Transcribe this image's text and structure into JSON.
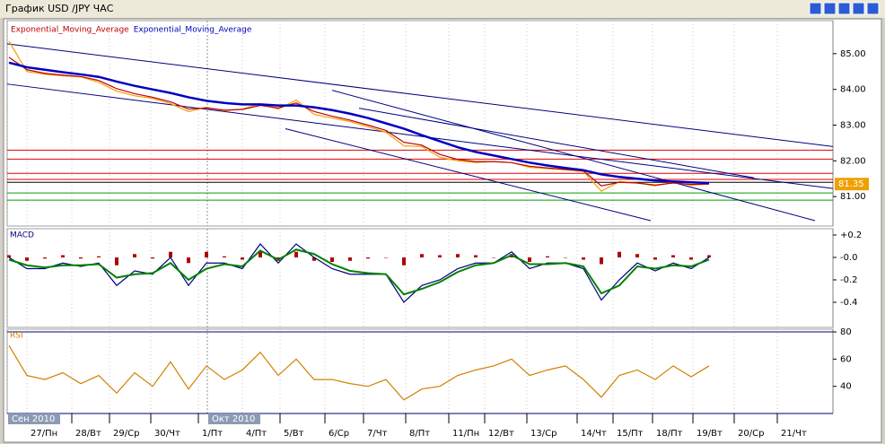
{
  "window": {
    "title": "График USD /JPY  ЧАС"
  },
  "chart_data": [
    {
      "type": "line",
      "legend": "top-left",
      "grid": true,
      "xlim": [
        -0.1,
        45.9
      ],
      "ylim": [
        80.175,
        85.925
      ],
      "yticks": [
        {
          "value": 81,
          "label": "81.00"
        },
        {
          "value": 82,
          "label": "82.00"
        },
        {
          "value": 83,
          "label": "83.00"
        },
        {
          "value": 84,
          "label": "84.00"
        },
        {
          "value": 85,
          "label": "85.00"
        }
      ],
      "last_price": 81.35,
      "last_price_color": "#f0a000",
      "series": [
        {
          "color": "#f0a000",
          "values": [
            85.35,
            84.5,
            84.42,
            84.38,
            84.35,
            84.2,
            83.95,
            83.82,
            83.75,
            83.6,
            83.38,
            83.5,
            83.4,
            83.45,
            83.6,
            83.45,
            83.7,
            83.3,
            83.2,
            83.1,
            82.95,
            82.8,
            82.42,
            82.4,
            82.1,
            82.0,
            81.95,
            81.98,
            81.95,
            81.82,
            81.78,
            81.75,
            81.7,
            81.15,
            81.42,
            81.38,
            81.3,
            81.4,
            81.32,
            81.35
          ]
        },
        {
          "name": "Exponential_Moving_Average",
          "color": "#c00000",
          "values": [
            84.9,
            84.55,
            84.45,
            84.4,
            84.36,
            84.25,
            84.02,
            83.88,
            83.78,
            83.65,
            83.45,
            83.48,
            83.42,
            83.44,
            83.55,
            83.48,
            83.62,
            83.38,
            83.25,
            83.14,
            83.0,
            82.85,
            82.52,
            82.44,
            82.18,
            82.04,
            81.98,
            81.98,
            81.95,
            81.85,
            81.8,
            81.76,
            81.72,
            81.3,
            81.4,
            81.38,
            81.32,
            81.38,
            81.34,
            81.35
          ]
        },
        {
          "name": "Exponential_Moving_Average",
          "color": "#0000c0",
          "values": [
            84.75,
            84.62,
            84.55,
            84.48,
            84.42,
            84.35,
            84.22,
            84.1,
            84.0,
            83.9,
            83.78,
            83.68,
            83.62,
            83.58,
            83.58,
            83.55,
            83.55,
            83.5,
            83.42,
            83.32,
            83.2,
            83.05,
            82.9,
            82.72,
            82.55,
            82.38,
            82.25,
            82.15,
            82.05,
            81.95,
            81.87,
            81.8,
            81.74,
            81.62,
            81.55,
            81.5,
            81.45,
            81.42,
            81.4,
            81.38
          ]
        }
      ],
      "hlines": [
        {
          "value": 82.3,
          "color": "#e00000"
        },
        {
          "value": 82.05,
          "color": "#e00000"
        },
        {
          "value": 81.65,
          "color": "#e00000"
        },
        {
          "value": 81.48,
          "color": "#e00000"
        },
        {
          "value": 81.4,
          "color": "#000000"
        },
        {
          "value": 81.1,
          "color": "#00a000"
        },
        {
          "value": 80.9,
          "color": "#00a000"
        }
      ],
      "trendlines": [
        {
          "x": [
            -0.1,
            45.9
          ],
          "y": [
            85.275,
            82.4
          ],
          "color": "#000080"
        },
        {
          "x": [
            -0.1,
            45.9
          ],
          "y": [
            84.15,
            81.225
          ],
          "color": "#000080"
        },
        {
          "x": [
            18,
            44.9
          ],
          "y": [
            83.975,
            80.325
          ],
          "color": "#000080"
        },
        {
          "x": [
            15.4,
            35.75
          ],
          "y": [
            82.9,
            80.325
          ],
          "color": "#000080"
        },
        {
          "x": [
            19.5,
            41.5
          ],
          "y": [
            83.475,
            81.525
          ],
          "color": "#000080"
        }
      ]
    },
    {
      "type": "line",
      "title": "MACD",
      "title_color": "#000080",
      "xlim": [
        -0.1,
        45.9
      ],
      "ylim": [
        -0.624,
        0.256
      ],
      "yticks": [
        {
          "value": 0.2,
          "label": "+0.2"
        },
        {
          "value": 0,
          "label": "-0.0"
        },
        -0.2,
        -0.4
      ],
      "series": [
        {
          "style": "bar",
          "color": "#b00000",
          "values": [
            0.02,
            -0.03,
            -0.01,
            0.02,
            -0.01,
            0.01,
            -0.07,
            0.03,
            -0.01,
            0.05,
            -0.05,
            0.05,
            0.01,
            -0.02,
            0.06,
            -0.03,
            0.05,
            -0.03,
            -0.04,
            -0.03,
            -0.01,
            0,
            -0.07,
            0.03,
            0.02,
            0.03,
            0.02,
            0,
            0.03,
            -0.04,
            0.01,
            0,
            -0.02,
            -0.06,
            0.05,
            0.03,
            -0.02,
            0.02,
            -0.02,
            0.02
          ]
        },
        {
          "color": "#000080",
          "values": [
            0,
            -0.1,
            -0.1,
            -0.05,
            -0.08,
            -0.05,
            -0.25,
            -0.12,
            -0.15,
            0,
            -0.25,
            -0.05,
            -0.05,
            -0.1,
            0.12,
            -0.05,
            0.12,
            0,
            -0.1,
            -0.15,
            -0.15,
            -0.15,
            -0.4,
            -0.25,
            -0.2,
            -0.1,
            -0.05,
            -0.05,
            0.05,
            -0.1,
            -0.05,
            -0.05,
            -0.1,
            -0.38,
            -0.2,
            -0.05,
            -0.12,
            -0.05,
            -0.1,
            0
          ]
        },
        {
          "color": "#008000",
          "width": 2,
          "values": [
            -0.02,
            -0.07,
            -0.09,
            -0.07,
            -0.07,
            -0.06,
            -0.18,
            -0.15,
            -0.14,
            -0.05,
            -0.2,
            -0.1,
            -0.06,
            -0.08,
            0.06,
            -0.02,
            0.07,
            0.03,
            -0.06,
            -0.12,
            -0.14,
            -0.15,
            -0.33,
            -0.28,
            -0.22,
            -0.13,
            -0.07,
            -0.05,
            0.02,
            -0.06,
            -0.06,
            -0.05,
            -0.08,
            -0.32,
            -0.25,
            -0.08,
            -0.1,
            -0.07,
            -0.08,
            -0.02
          ]
        }
      ]
    },
    {
      "type": "line",
      "title": "RSI",
      "title_color": "#d08000",
      "xlim": [
        -0.1,
        45.9
      ],
      "ylim": [
        20,
        82
      ],
      "yticks": [
        40,
        60,
        80
      ],
      "hlines": [
        {
          "value": 80,
          "color": "#000080"
        },
        {
          "value": 20,
          "color": "#000080"
        }
      ],
      "series": [
        {
          "color": "#d08000",
          "values": [
            70,
            48,
            45,
            50,
            42,
            48,
            35,
            50,
            40,
            58,
            38,
            55,
            45,
            52,
            65,
            48,
            60,
            45,
            45,
            42,
            40,
            45,
            30,
            38,
            40,
            48,
            52,
            55,
            60,
            48,
            52,
            55,
            45,
            32,
            48,
            52,
            45,
            55,
            47,
            55
          ]
        }
      ],
      "xticks": [
        {
          "value": 1,
          "label": "27/Пн"
        },
        {
          "value": 3.5,
          "label": "28/Вт"
        },
        {
          "value": 5.6,
          "label": "29/Ср"
        },
        {
          "value": 7.9,
          "label": "30/Чт"
        },
        {
          "value": 10.55,
          "label": "1/Пт"
        },
        {
          "value": 13,
          "label": "4/Пт"
        },
        {
          "value": 15.1,
          "label": "5/Вт"
        },
        {
          "value": 17.6,
          "label": "6/Ср"
        },
        {
          "value": 19.75,
          "label": "7/Чт"
        },
        {
          "value": 22.1,
          "label": "8/Пт"
        },
        {
          "value": 24.5,
          "label": "11/Пн"
        },
        {
          "value": 26.5,
          "label": "12/Вт"
        },
        {
          "value": 28.85,
          "label": "13/Ср"
        },
        {
          "value": 31.65,
          "label": "14/Чт"
        },
        {
          "value": 33.65,
          "label": "15/Пт"
        },
        {
          "value": 35.85,
          "label": "18/Пт"
        },
        {
          "value": 38.1,
          "label": "19/Вт"
        },
        {
          "value": 40.4,
          "label": "20/Ср"
        },
        {
          "value": 42.8,
          "label": "21/Чт"
        }
      ],
      "month_ticks": [
        {
          "value": -0.1,
          "label": "Сен 2010"
        },
        {
          "value": 11.05,
          "label": "Окт 2010"
        }
      ]
    }
  ]
}
